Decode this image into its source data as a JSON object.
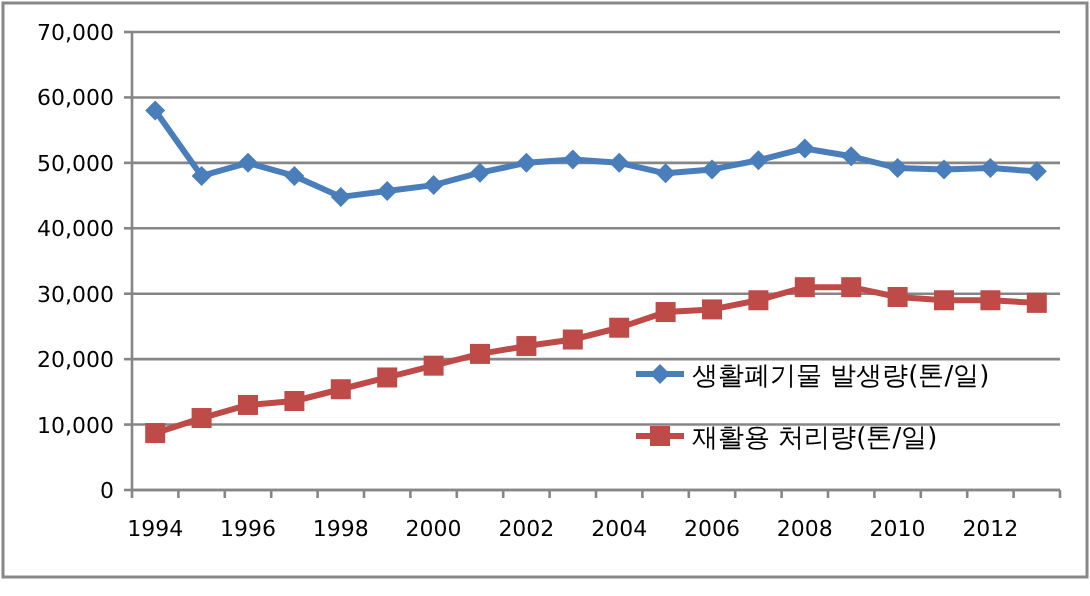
{
  "chart_data": {
    "type": "line",
    "categories": [
      "1994",
      null,
      "1996",
      null,
      "1998",
      null,
      "2000",
      null,
      "2002",
      null,
      "2004",
      null,
      "2006",
      null,
      "2008",
      null,
      "2010",
      null,
      "2012",
      null
    ],
    "series": [
      {
        "name": "생활폐기물 발생량(톤/일)",
        "color": "#4a7ebb",
        "marker": "diamond",
        "values": [
          58000,
          48000,
          50000,
          48000,
          44800,
          45700,
          46600,
          48500,
          50000,
          50500,
          50000,
          48400,
          49000,
          50400,
          52200,
          51000,
          49200,
          49000,
          49200,
          48700
        ]
      },
      {
        "name": "재활용 처리량(톤/일)",
        "color": "#be4b48",
        "marker": "square",
        "values": [
          8700,
          11000,
          13000,
          13600,
          15400,
          17200,
          19000,
          20800,
          22000,
          23000,
          24800,
          27200,
          27600,
          29000,
          31000,
          31000,
          29500,
          29000,
          29000,
          28600
        ]
      }
    ],
    "ylim": [
      0,
      70000
    ],
    "yticks": [
      0,
      {
        "value": 10000,
        "label": "10,000"
      },
      {
        "value": 20000,
        "label": "20,000"
      },
      {
        "value": 30000,
        "label": "30,000"
      },
      {
        "value": 40000,
        "label": "40,000"
      },
      {
        "value": 50000,
        "label": "50,000"
      },
      {
        "value": 60000,
        "label": "60,000"
      },
      {
        "value": 70000,
        "label": "70,000"
      }
    ],
    "grid": "y",
    "legend": "bottom right",
    "line_style": "solid"
  }
}
